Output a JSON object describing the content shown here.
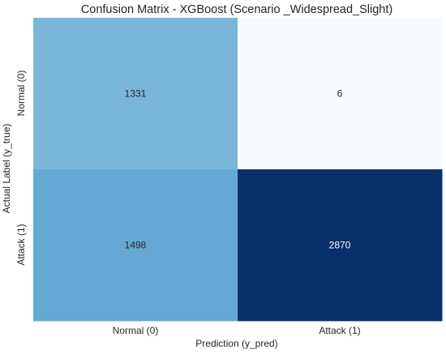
{
  "chart_data": {
    "type": "heatmap",
    "title": "Confusion Matrix - XGBoost (Scenario _Widespread_Slight)",
    "xlabel": "Prediction (y_pred)",
    "ylabel": "Actual Label (y_true)",
    "x_categories": [
      "Normal (0)",
      "Attack (1)"
    ],
    "y_categories": [
      "Normal (0)",
      "Attack (1)"
    ],
    "values": [
      [
        1331,
        6
      ],
      [
        1498,
        2870
      ]
    ],
    "colormap": "Blues",
    "color_low": "#f7fbff",
    "color_high": "#08306b",
    "colorbar": false,
    "grid": false
  }
}
